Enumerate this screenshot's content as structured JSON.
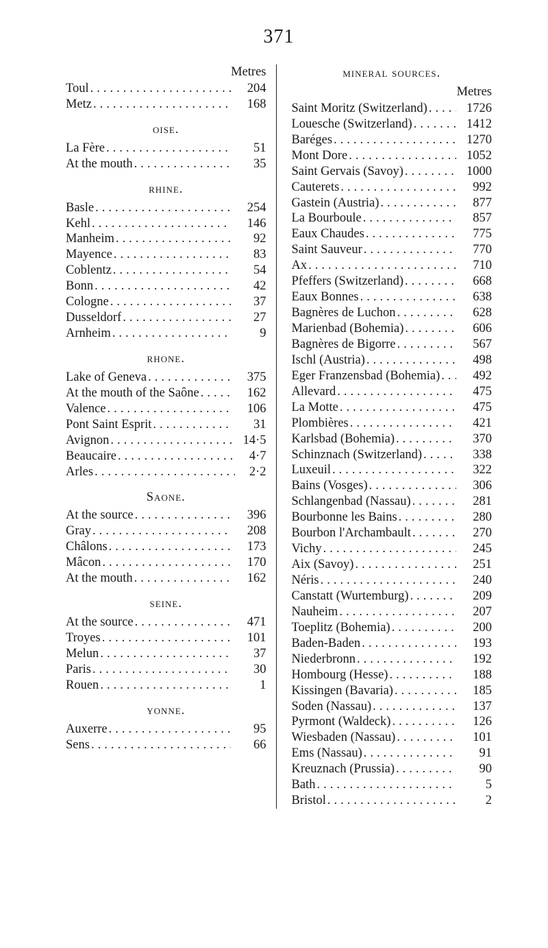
{
  "page_number": "371",
  "left_column": {
    "unit_label": "Metres",
    "groups": [
      {
        "heading": null,
        "rows": [
          {
            "label": "Toul",
            "value": "204"
          },
          {
            "label": "Metz",
            "value": "168"
          }
        ]
      },
      {
        "heading": "oise.",
        "rows": [
          {
            "label": "La Fère",
            "value": "51"
          },
          {
            "label": "At the mouth",
            "value": "35"
          }
        ]
      },
      {
        "heading": "rhine.",
        "rows": [
          {
            "label": "Basle",
            "value": "254"
          },
          {
            "label": "Kehl",
            "value": "146"
          },
          {
            "label": "Manheim",
            "value": "92"
          },
          {
            "label": "Mayence",
            "value": "83"
          },
          {
            "label": "Coblentz",
            "value": "54"
          },
          {
            "label": "Bonn",
            "value": "42"
          },
          {
            "label": "Cologne",
            "value": "37"
          },
          {
            "label": "Dusseldorf",
            "value": "27"
          },
          {
            "label": "Arnheim",
            "value": "9"
          }
        ]
      },
      {
        "heading": "rhone.",
        "rows": [
          {
            "label": "Lake of Geneva",
            "value": "375"
          },
          {
            "label": "At the mouth of the Saône",
            "value": "162"
          },
          {
            "label": "Valence",
            "value": "106"
          },
          {
            "label": "Pont Saint Esprit",
            "value": "31"
          },
          {
            "label": "Avignon",
            "value": "14·5"
          },
          {
            "label": "Beaucaire",
            "value": "4·7"
          },
          {
            "label": "Arles",
            "value": "2·2"
          }
        ]
      },
      {
        "heading": "Saone.",
        "rows": [
          {
            "label": "At the source",
            "value": "396"
          },
          {
            "label": "Gray",
            "value": "208"
          },
          {
            "label": "Châlons",
            "value": "173"
          },
          {
            "label": "Mâcon",
            "value": "170"
          },
          {
            "label": "At the mouth",
            "value": "162"
          }
        ]
      },
      {
        "heading": "seine.",
        "rows": [
          {
            "label": "At the source",
            "value": "471"
          },
          {
            "label": "Troyes",
            "value": "101"
          },
          {
            "label": "Melun",
            "value": "37"
          },
          {
            "label": "Paris",
            "value": "30"
          },
          {
            "label": "Rouen",
            "value": "1"
          }
        ]
      },
      {
        "heading": "yonne.",
        "rows": [
          {
            "label": "Auxerre",
            "value": "95"
          },
          {
            "label": "Sens",
            "value": "66"
          }
        ]
      }
    ]
  },
  "right_column": {
    "heading": "mineral sources.",
    "unit_label": "Metres",
    "rows": [
      {
        "label": "Saint Moritz (Switzerland)",
        "value": "1726"
      },
      {
        "label": "Louesche (Switzerland)",
        "value": "1412"
      },
      {
        "label": "Baréges",
        "value": "1270"
      },
      {
        "label": "Mont Dore",
        "value": "1052"
      },
      {
        "label": "Saint Gervais (Savoy)",
        "value": "1000"
      },
      {
        "label": "Cauterets",
        "value": "992"
      },
      {
        "label": "Gastein (Austria)",
        "value": "877"
      },
      {
        "label": "La Bourboule",
        "value": "857"
      },
      {
        "label": "Eaux Chaudes",
        "value": "775"
      },
      {
        "label": "Saint Sauveur",
        "value": "770"
      },
      {
        "label": "Ax",
        "value": "710"
      },
      {
        "label": "Pfeffers (Switzerland)",
        "value": "668"
      },
      {
        "label": "Eaux Bonnes",
        "value": "638"
      },
      {
        "label": "Bagnères de Luchon",
        "value": "628"
      },
      {
        "label": "Marienbad (Bohemia)",
        "value": "606"
      },
      {
        "label": "Bagnères de Bigorre",
        "value": "567"
      },
      {
        "label": "Ischl (Austria)",
        "value": "498"
      },
      {
        "label": "Eger Franzensbad (Bohemia)",
        "value": "492"
      },
      {
        "label": "Allevard",
        "value": "475"
      },
      {
        "label": "La Motte",
        "value": "475"
      },
      {
        "label": "Plombières",
        "value": "421"
      },
      {
        "label": "Karlsbad (Bohemia)",
        "value": "370"
      },
      {
        "label": "Schinznach (Switzerland)",
        "value": "338"
      },
      {
        "label": "Luxeuil",
        "value": "322"
      },
      {
        "label": "Bains (Vosges)",
        "value": "306"
      },
      {
        "label": "Schlangenbad (Nassau)",
        "value": "281"
      },
      {
        "label": "Bourbonne les Bains",
        "value": "280"
      },
      {
        "label": "Bourbon l'Archambault",
        "value": "270"
      },
      {
        "label": "Vichy",
        "value": "245"
      },
      {
        "label": "Aix (Savoy)",
        "value": "251"
      },
      {
        "label": "Néris",
        "value": "240"
      },
      {
        "label": "Canstatt (Wurtemburg)",
        "value": "209"
      },
      {
        "label": "Nauheim",
        "value": "207"
      },
      {
        "label": "Toeplitz (Bohemia)",
        "value": "200"
      },
      {
        "label": "Baden-Baden",
        "value": "193"
      },
      {
        "label": "Niederbronn",
        "value": "192"
      },
      {
        "label": "Hombourg (Hesse)",
        "value": "188"
      },
      {
        "label": "Kissingen (Bavaria)",
        "value": "185"
      },
      {
        "label": "Soden (Nassau)",
        "value": "137"
      },
      {
        "label": "Pyrmont (Waldeck)",
        "value": "126"
      },
      {
        "label": "Wiesbaden (Nassau)",
        "value": "101"
      },
      {
        "label": "Ems (Nassau)",
        "value": "91"
      },
      {
        "label": "Kreuznach (Prussia)",
        "value": "90"
      },
      {
        "label": "Bath",
        "value": "5"
      },
      {
        "label": "Bristol",
        "value": "2"
      }
    ]
  }
}
